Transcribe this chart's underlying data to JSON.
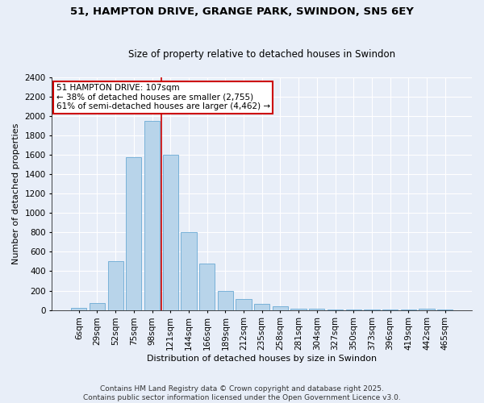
{
  "title1": "51, HAMPTON DRIVE, GRANGE PARK, SWINDON, SN5 6EY",
  "title2": "Size of property relative to detached houses in Swindon",
  "xlabel": "Distribution of detached houses by size in Swindon",
  "ylabel": "Number of detached properties",
  "bar_labels": [
    "6sqm",
    "29sqm",
    "52sqm",
    "75sqm",
    "98sqm",
    "121sqm",
    "144sqm",
    "166sqm",
    "189sqm",
    "212sqm",
    "235sqm",
    "258sqm",
    "281sqm",
    "304sqm",
    "327sqm",
    "350sqm",
    "373sqm",
    "396sqm",
    "419sqm",
    "442sqm",
    "465sqm"
  ],
  "bar_values": [
    25,
    75,
    500,
    1575,
    1950,
    1600,
    800,
    475,
    200,
    110,
    65,
    40,
    15,
    10,
    8,
    5,
    5,
    5,
    5,
    15,
    5
  ],
  "bar_color": "#b8d4ea",
  "bar_edge_color": "#6aaad4",
  "background_color": "#e8eef8",
  "grid_color": "#ffffff",
  "vline_x_index": 5,
  "vline_color": "#cc0000",
  "annotation_text": "51 HAMPTON DRIVE: 107sqm\n← 38% of detached houses are smaller (2,755)\n61% of semi-detached houses are larger (4,462) →",
  "annotation_box_color": "#ffffff",
  "annotation_edge_color": "#cc0000",
  "ylim": [
    0,
    2400
  ],
  "yticks": [
    0,
    200,
    400,
    600,
    800,
    1000,
    1200,
    1400,
    1600,
    1800,
    2000,
    2200,
    2400
  ],
  "footer1": "Contains HM Land Registry data © Crown copyright and database right 2025.",
  "footer2": "Contains public sector information licensed under the Open Government Licence v3.0.",
  "title1_fontsize": 9.5,
  "title2_fontsize": 8.5,
  "xlabel_fontsize": 8,
  "ylabel_fontsize": 8,
  "tick_fontsize": 7.5,
  "annotation_fontsize": 7.5,
  "footer_fontsize": 6.5
}
